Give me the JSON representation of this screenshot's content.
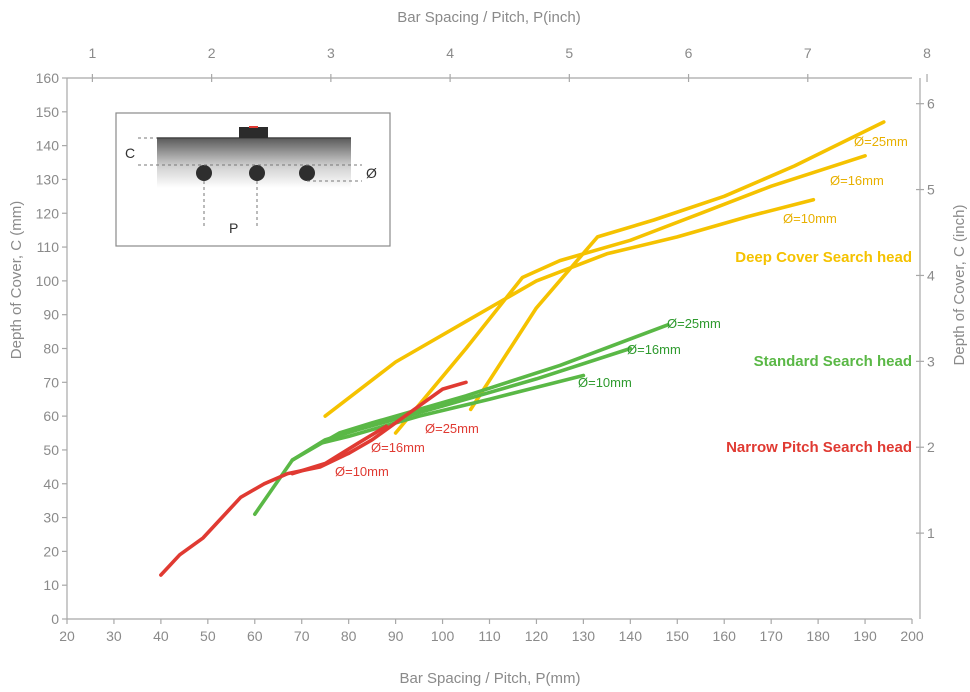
{
  "chart_data": {
    "type": "line",
    "x_bottom": {
      "label": "Bar Spacing / Pitch, P(mm)",
      "range": [
        20,
        200
      ],
      "ticks": [
        20,
        30,
        40,
        50,
        60,
        70,
        80,
        90,
        100,
        110,
        120,
        130,
        140,
        150,
        160,
        170,
        180,
        190,
        200
      ]
    },
    "x_top": {
      "label": "Bar Spacing / Pitch, P(inch)",
      "range": [
        0.787,
        7.874
      ],
      "ticks": [
        1,
        2,
        3,
        4,
        5,
        6,
        7,
        8
      ]
    },
    "y_left": {
      "label": "Depth of Cover, C (mm)",
      "range": [
        0,
        160
      ],
      "ticks": [
        0,
        10,
        20,
        30,
        40,
        50,
        60,
        70,
        80,
        90,
        100,
        110,
        120,
        130,
        140,
        150,
        160
      ]
    },
    "y_right": {
      "label": "Depth of Cover, C (inch)",
      "range": [
        0,
        6.299
      ],
      "ticks": [
        1,
        2,
        3,
        4,
        5,
        6
      ]
    },
    "groups": [
      {
        "name": "Deep Cover Search head",
        "color": "#f5c200",
        "series": [
          {
            "name": "Ø=10mm",
            "points": [
              [
                75,
                60
              ],
              [
                90,
                76
              ],
              [
                105,
                88
              ],
              [
                120,
                100
              ],
              [
                135,
                108
              ],
              [
                150,
                113
              ],
              [
                165,
                119
              ],
              [
                179,
                124
              ]
            ]
          },
          {
            "name": "Ø=16mm",
            "points": [
              [
                90,
                55
              ],
              [
                105,
                80
              ],
              [
                117,
                101
              ],
              [
                125,
                106
              ],
              [
                140,
                112
              ],
              [
                155,
                120
              ],
              [
                170,
                128
              ],
              [
                190,
                137
              ]
            ]
          },
          {
            "name": "Ø=25mm",
            "points": [
              [
                106,
                62
              ],
              [
                120,
                92
              ],
              [
                133,
                113
              ],
              [
                145,
                118
              ],
              [
                160,
                125
              ],
              [
                175,
                134
              ],
              [
                194,
                147
              ]
            ]
          }
        ],
        "annotations": [
          "Ø=25mm",
          "Ø=16mm",
          "Ø=10mm"
        ]
      },
      {
        "name": "Standard Search head",
        "color": "#5ab846",
        "series": [
          {
            "name": "Ø=10mm",
            "points": [
              [
                60,
                31
              ],
              [
                68,
                47
              ],
              [
                74,
                52
              ],
              [
                80,
                54
              ],
              [
                95,
                60
              ],
              [
                110,
                65
              ],
              [
                130,
                72
              ]
            ]
          },
          {
            "name": "Ø=16mm",
            "points": [
              [
                68,
                47
              ],
              [
                75,
                53
              ],
              [
                82,
                56
              ],
              [
                100,
                63
              ],
              [
                120,
                71
              ],
              [
                140,
                80
              ]
            ]
          },
          {
            "name": "Ø=25mm",
            "points": [
              [
                68,
                47
              ],
              [
                78,
                55
              ],
              [
                85,
                58
              ],
              [
                105,
                66
              ],
              [
                125,
                75
              ],
              [
                148,
                87
              ]
            ]
          }
        ],
        "annotations": [
          "Ø=25mm",
          "Ø=16mm",
          "Ø=10mm"
        ]
      },
      {
        "name": "Narrow Pitch Search head",
        "color": "#e03a32",
        "series": [
          {
            "name": "Ø=10mm",
            "points": [
              [
                40,
                13
              ],
              [
                44,
                19
              ],
              [
                49,
                24
              ],
              [
                53,
                30
              ],
              [
                57,
                36
              ],
              [
                62,
                40
              ],
              [
                67,
                43
              ],
              [
                74,
                45
              ],
              [
                80,
                49
              ]
            ]
          },
          {
            "name": "Ø=16mm",
            "points": [
              [
                68,
                43
              ],
              [
                75,
                46
              ],
              [
                82,
                52
              ],
              [
                88,
                57
              ]
            ]
          },
          {
            "name": "Ø=25mm",
            "points": [
              [
                80,
                49
              ],
              [
                85,
                53
              ],
              [
                93,
                61
              ],
              [
                100,
                68
              ],
              [
                105,
                70
              ]
            ]
          }
        ],
        "annotations": [
          "Ø=25mm",
          "Ø=16mm",
          "Ø=10mm"
        ]
      }
    ],
    "inset": {
      "labels": [
        "C",
        "Ø",
        "P"
      ]
    }
  }
}
